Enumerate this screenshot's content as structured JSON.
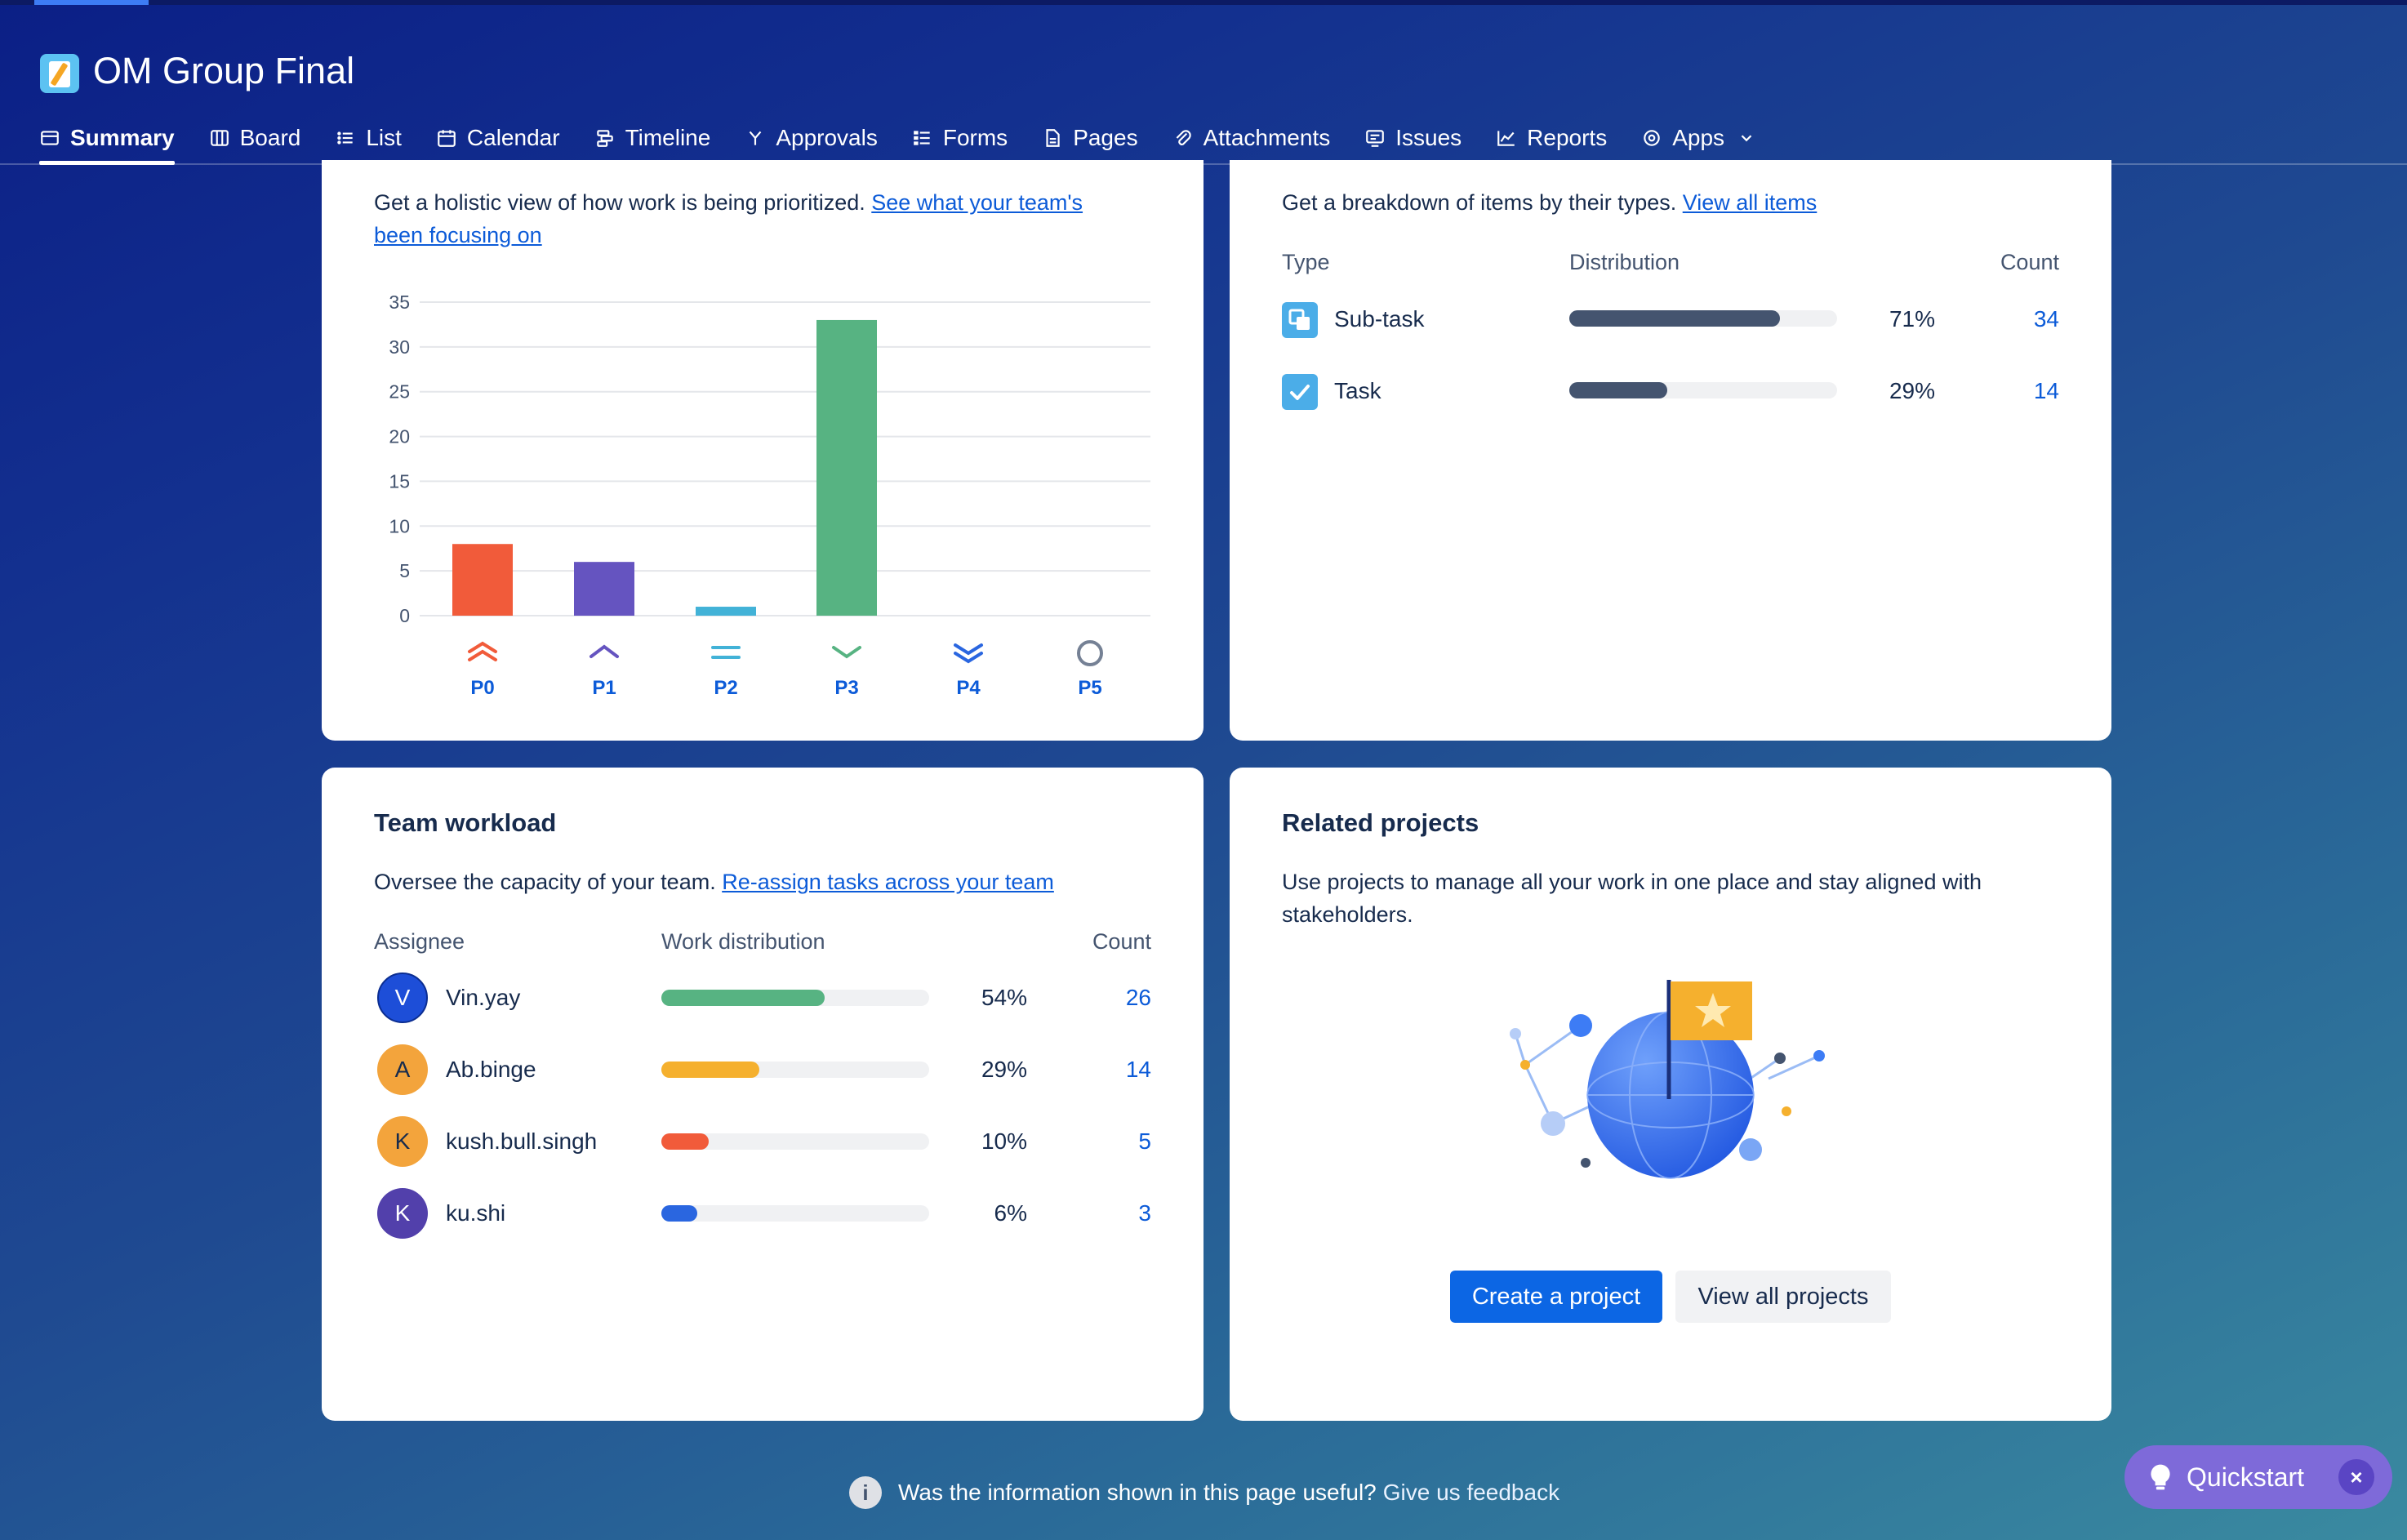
{
  "project": {
    "title": "OM Group Final"
  },
  "tabs": [
    {
      "label": "Summary",
      "icon": "summary-icon"
    },
    {
      "label": "Board",
      "icon": "board-icon"
    },
    {
      "label": "List",
      "icon": "list-icon"
    },
    {
      "label": "Calendar",
      "icon": "calendar-icon"
    },
    {
      "label": "Timeline",
      "icon": "timeline-icon"
    },
    {
      "label": "Approvals",
      "icon": "approvals-icon"
    },
    {
      "label": "Forms",
      "icon": "forms-icon"
    },
    {
      "label": "Pages",
      "icon": "pages-icon"
    },
    {
      "label": "Attachments",
      "icon": "attachment-icon"
    },
    {
      "label": "Issues",
      "icon": "issues-icon"
    },
    {
      "label": "Reports",
      "icon": "reports-icon"
    },
    {
      "label": "Apps",
      "icon": "apps-icon"
    }
  ],
  "priority": {
    "desc": "Get a holistic view of how work is being prioritized. ",
    "link_line1": "See what your team's",
    "link_line2": "been focusing on"
  },
  "chart_data": {
    "type": "bar",
    "categories": [
      "P0",
      "P1",
      "P2",
      "P3",
      "P4",
      "P5"
    ],
    "values": [
      8,
      6,
      1,
      33,
      0,
      0
    ],
    "colors": [
      "#F15B3A",
      "#6554C0",
      "#42B2D7",
      "#57B382",
      "#2A66E0",
      "#758195"
    ],
    "yticks": [
      0,
      5,
      10,
      15,
      20,
      25,
      30,
      35
    ],
    "ylim": [
      0,
      35
    ],
    "title": "",
    "xlabel": "",
    "ylabel": "",
    "grid": true
  },
  "types": {
    "desc": "Get a breakdown of items by their types. ",
    "link": "View all items",
    "headers": {
      "type": "Type",
      "distribution": "Distribution",
      "count": "Count"
    },
    "rows": [
      {
        "name": "Sub-task",
        "percent": "71%",
        "count": "34",
        "fraction": 0.71,
        "color": "#44546F",
        "icon": "subtask-icon"
      },
      {
        "name": "Task",
        "percent": "29%",
        "count": "14",
        "fraction": 0.29,
        "color": "#44546F",
        "icon": "task-icon"
      }
    ]
  },
  "workload": {
    "title": "Team workload",
    "desc": "Oversee the capacity of your team. ",
    "link": "Re-assign tasks across your team",
    "headers": {
      "assignee": "Assignee",
      "distribution": "Work distribution",
      "count": "Count"
    },
    "rows": [
      {
        "initial": "V",
        "name": "Vin.yay",
        "percent": "54%",
        "count": "26",
        "fraction": 0.54,
        "color": "#57B382",
        "avatar_color": "blue"
      },
      {
        "initial": "A",
        "name": "Ab.binge",
        "percent": "29%",
        "count": "14",
        "fraction": 0.29,
        "color": "#F5B02E",
        "avatar_color": "orange"
      },
      {
        "initial": "K",
        "name": "kush.bull.singh",
        "percent": "10%",
        "count": "5",
        "fraction": 0.1,
        "color": "#F15B3A",
        "avatar_color": "orange"
      },
      {
        "initial": "K",
        "name": "ku.shi",
        "percent": "6%",
        "count": "3",
        "fraction": 0.06,
        "color": "#2A66E0",
        "avatar_color": "purple"
      }
    ]
  },
  "related": {
    "title": "Related projects",
    "desc_line1": "Use projects to manage all your work in one place and stay aligned with",
    "desc_line2": "stakeholders.",
    "create_label": "Create a project",
    "view_label": "View all projects"
  },
  "feedback": {
    "question": "Was the information shown in this page useful?",
    "link": "Give us feedback",
    "info_glyph": "i"
  },
  "quickstart": {
    "label": "Quickstart",
    "close_glyph": "×"
  }
}
